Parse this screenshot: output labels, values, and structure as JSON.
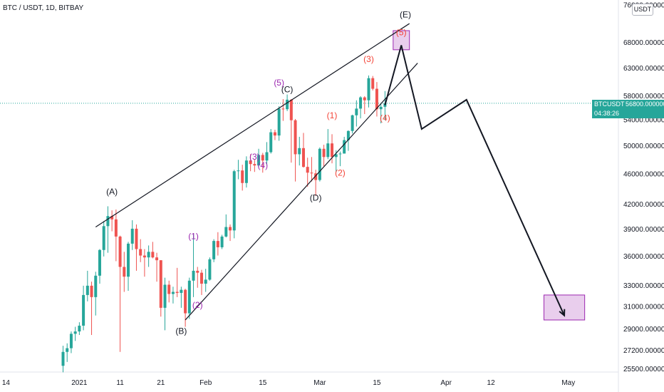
{
  "header": {
    "symbol_line": "BTC / USDT, 1D, BITBAY"
  },
  "currency_badge": "USDT",
  "price_label": {
    "symbol": "BTCUSDT",
    "price": "56800.000000",
    "countdown": "04:38:26"
  },
  "chart_data": {
    "type": "candlestick",
    "title": "BTC / USDT, 1D, BITBAY",
    "x_ticks": [
      "14",
      "2021",
      "11",
      "21",
      "Feb",
      "15",
      "Mar",
      "15",
      "Apr",
      "12",
      "May"
    ],
    "y_ticks": [
      "76000.000000",
      "68000.000000",
      "63000.000000",
      "58000.000000",
      "54000.000000",
      "50000.000000",
      "46000.000000",
      "42000.000000",
      "39000.000000",
      "36000.000000",
      "33000.000000",
      "31000.000000",
      "29000.000000",
      "27200.000000",
      "25500.000000"
    ],
    "y_log_scale": true,
    "current_price": 56800,
    "up_color": "#26a69a",
    "down_color": "#ef5350",
    "candles": [
      {
        "date": "2020-12-28",
        "open": 26000,
        "high": 27600,
        "low": 25500,
        "close": 27100
      },
      {
        "date": "2020-12-29",
        "open": 27100,
        "high": 27800,
        "low": 26300,
        "close": 27400
      },
      {
        "date": "2020-12-30",
        "open": 27400,
        "high": 28800,
        "low": 27000,
        "close": 28600
      },
      {
        "date": "2020-12-31",
        "open": 28600,
        "high": 29200,
        "low": 28000,
        "close": 28800
      },
      {
        "date": "2021-01-01",
        "open": 28800,
        "high": 29600,
        "low": 28500,
        "close": 29300
      },
      {
        "date": "2021-01-02",
        "open": 29300,
        "high": 33000,
        "low": 28900,
        "close": 32100
      },
      {
        "date": "2021-01-03",
        "open": 32100,
        "high": 34500,
        "low": 31500,
        "close": 33000
      },
      {
        "date": "2021-01-04",
        "open": 33000,
        "high": 33400,
        "low": 28500,
        "close": 31900
      },
      {
        "date": "2021-01-05",
        "open": 31900,
        "high": 34400,
        "low": 30200,
        "close": 34000
      },
      {
        "date": "2021-01-06",
        "open": 34000,
        "high": 36800,
        "low": 33200,
        "close": 36700
      },
      {
        "date": "2021-01-07",
        "open": 36700,
        "high": 40000,
        "low": 36000,
        "close": 39400
      },
      {
        "date": "2021-01-08",
        "open": 39400,
        "high": 41800,
        "low": 36400,
        "close": 40600
      },
      {
        "date": "2021-01-09",
        "open": 40600,
        "high": 41300,
        "low": 38800,
        "close": 40200
      },
      {
        "date": "2021-01-10",
        "open": 40200,
        "high": 41400,
        "low": 35500,
        "close": 38200
      },
      {
        "date": "2021-01-11",
        "open": 38200,
        "high": 38300,
        "low": 27100,
        "close": 34900
      },
      {
        "date": "2021-01-12",
        "open": 34900,
        "high": 36500,
        "low": 32400,
        "close": 33900
      },
      {
        "date": "2021-01-13",
        "open": 33900,
        "high": 37600,
        "low": 32500,
        "close": 37400
      },
      {
        "date": "2021-01-14",
        "open": 37400,
        "high": 40100,
        "low": 36700,
        "close": 39100
      },
      {
        "date": "2021-01-15",
        "open": 39100,
        "high": 39600,
        "low": 34500,
        "close": 36800
      },
      {
        "date": "2021-01-16",
        "open": 36800,
        "high": 37900,
        "low": 35400,
        "close": 36100
      },
      {
        "date": "2021-01-17",
        "open": 36100,
        "high": 36800,
        "low": 33900,
        "close": 35900
      },
      {
        "date": "2021-01-18",
        "open": 35900,
        "high": 37200,
        "low": 34900,
        "close": 36500
      },
      {
        "date": "2021-01-19",
        "open": 36500,
        "high": 37600,
        "low": 35800,
        "close": 35900
      },
      {
        "date": "2021-01-20",
        "open": 35900,
        "high": 36400,
        "low": 33400,
        "close": 35600
      },
      {
        "date": "2021-01-21",
        "open": 35600,
        "high": 35600,
        "low": 30100,
        "close": 30900
      },
      {
        "date": "2021-01-22",
        "open": 30900,
        "high": 33800,
        "low": 28900,
        "close": 33100
      },
      {
        "date": "2021-01-23",
        "open": 33100,
        "high": 33500,
        "low": 31400,
        "close": 32200
      },
      {
        "date": "2021-01-24",
        "open": 32200,
        "high": 32900,
        "low": 31300,
        "close": 32400
      },
      {
        "date": "2021-01-25",
        "open": 32400,
        "high": 34800,
        "low": 31900,
        "close": 32300
      },
      {
        "date": "2021-01-26",
        "open": 32300,
        "high": 32900,
        "low": 30900,
        "close": 32600
      },
      {
        "date": "2021-01-27",
        "open": 32600,
        "high": 32700,
        "low": 29200,
        "close": 30400
      },
      {
        "date": "2021-01-28",
        "open": 30400,
        "high": 33800,
        "low": 29900,
        "close": 33500
      },
      {
        "date": "2021-01-29",
        "open": 33500,
        "high": 38500,
        "low": 31900,
        "close": 34500
      },
      {
        "date": "2021-01-30",
        "open": 34500,
        "high": 34900,
        "low": 32800,
        "close": 34300
      },
      {
        "date": "2021-01-31",
        "open": 34300,
        "high": 34600,
        "low": 32100,
        "close": 33200
      },
      {
        "date": "2021-02-01",
        "open": 33200,
        "high": 34700,
        "low": 32400,
        "close": 33600
      },
      {
        "date": "2021-02-02",
        "open": 33600,
        "high": 35900,
        "low": 33500,
        "close": 35700
      },
      {
        "date": "2021-02-03",
        "open": 35700,
        "high": 37900,
        "low": 35400,
        "close": 37700
      },
      {
        "date": "2021-02-04",
        "open": 37700,
        "high": 38700,
        "low": 36100,
        "close": 37000
      },
      {
        "date": "2021-02-05",
        "open": 37000,
        "high": 38400,
        "low": 36800,
        "close": 38200
      },
      {
        "date": "2021-02-06",
        "open": 38200,
        "high": 40800,
        "low": 38100,
        "close": 39300
      },
      {
        "date": "2021-02-07",
        "open": 39300,
        "high": 39600,
        "low": 37700,
        "close": 38900
      },
      {
        "date": "2021-02-08",
        "open": 38900,
        "high": 46600,
        "low": 38000,
        "close": 46400
      },
      {
        "date": "2021-02-09",
        "open": 46400,
        "high": 48000,
        "low": 45300,
        "close": 46500
      },
      {
        "date": "2021-02-10",
        "open": 46500,
        "high": 47300,
        "low": 43800,
        "close": 44800
      },
      {
        "date": "2021-02-11",
        "open": 44800,
        "high": 48500,
        "low": 44200,
        "close": 47900
      },
      {
        "date": "2021-02-12",
        "open": 47900,
        "high": 48800,
        "low": 46400,
        "close": 47400
      },
      {
        "date": "2021-02-13",
        "open": 47400,
        "high": 48000,
        "low": 46300,
        "close": 47200
      },
      {
        "date": "2021-02-14",
        "open": 47200,
        "high": 49600,
        "low": 47000,
        "close": 48700
      },
      {
        "date": "2021-02-15",
        "open": 48700,
        "high": 49000,
        "low": 46200,
        "close": 47900
      },
      {
        "date": "2021-02-16",
        "open": 47900,
        "high": 50600,
        "low": 47200,
        "close": 49100
      },
      {
        "date": "2021-02-17",
        "open": 49100,
        "high": 52600,
        "low": 48900,
        "close": 52100
      },
      {
        "date": "2021-02-18",
        "open": 52100,
        "high": 52500,
        "low": 50900,
        "close": 51600
      },
      {
        "date": "2021-02-19",
        "open": 51600,
        "high": 56300,
        "low": 50800,
        "close": 55900
      },
      {
        "date": "2021-02-20",
        "open": 55900,
        "high": 57500,
        "low": 53900,
        "close": 55800
      },
      {
        "date": "2021-02-21",
        "open": 55800,
        "high": 58300,
        "low": 55500,
        "close": 57400
      },
      {
        "date": "2021-02-22",
        "open": 57400,
        "high": 57500,
        "low": 47600,
        "close": 54000
      },
      {
        "date": "2021-02-23",
        "open": 54000,
        "high": 54200,
        "low": 45000,
        "close": 48800
      },
      {
        "date": "2021-02-24",
        "open": 48800,
        "high": 51400,
        "low": 47200,
        "close": 49700
      },
      {
        "date": "2021-02-25",
        "open": 49700,
        "high": 52000,
        "low": 46900,
        "close": 47000
      },
      {
        "date": "2021-02-26",
        "open": 47000,
        "high": 48300,
        "low": 44300,
        "close": 46200
      },
      {
        "date": "2021-02-27",
        "open": 46200,
        "high": 48400,
        "low": 45000,
        "close": 46100
      },
      {
        "date": "2021-02-28",
        "open": 46100,
        "high": 46600,
        "low": 43100,
        "close": 45200
      },
      {
        "date": "2021-03-01",
        "open": 45200,
        "high": 49800,
        "low": 45000,
        "close": 49600
      },
      {
        "date": "2021-03-02",
        "open": 49600,
        "high": 50200,
        "low": 47100,
        "close": 48400
      },
      {
        "date": "2021-03-03",
        "open": 48400,
        "high": 52600,
        "low": 48100,
        "close": 50400
      },
      {
        "date": "2021-03-04",
        "open": 50400,
        "high": 51800,
        "low": 47500,
        "close": 48400
      },
      {
        "date": "2021-03-05",
        "open": 48400,
        "high": 49400,
        "low": 46300,
        "close": 48800
      },
      {
        "date": "2021-03-06",
        "open": 48800,
        "high": 49200,
        "low": 47100,
        "close": 48900
      },
      {
        "date": "2021-03-07",
        "open": 48900,
        "high": 51400,
        "low": 48900,
        "close": 50900
      },
      {
        "date": "2021-03-08",
        "open": 50900,
        "high": 52400,
        "low": 49300,
        "close": 52300
      },
      {
        "date": "2021-03-09",
        "open": 52300,
        "high": 54900,
        "low": 51900,
        "close": 54800
      },
      {
        "date": "2021-03-10",
        "open": 54800,
        "high": 57300,
        "low": 53000,
        "close": 55900
      },
      {
        "date": "2021-03-11",
        "open": 55900,
        "high": 58000,
        "low": 54300,
        "close": 57800
      },
      {
        "date": "2021-03-12",
        "open": 57800,
        "high": 58000,
        "low": 55000,
        "close": 57300
      },
      {
        "date": "2021-03-13",
        "open": 57300,
        "high": 61700,
        "low": 56100,
        "close": 61200
      },
      {
        "date": "2021-03-14",
        "open": 61200,
        "high": 61600,
        "low": 59000,
        "close": 59300
      },
      {
        "date": "2021-03-15",
        "open": 59300,
        "high": 60500,
        "low": 54600,
        "close": 55800
      },
      {
        "date": "2021-03-16",
        "open": 55800,
        "high": 56800,
        "low": 53500,
        "close": 56200
      },
      {
        "date": "2021-03-17",
        "open": 56200,
        "high": 58900,
        "low": 54000,
        "close": 56800
      }
    ],
    "trendlines": [
      {
        "name": "upper",
        "from": {
          "date": "2021-01-05",
          "price": 39300
        },
        "to": {
          "date": "2021-03-23",
          "price": 72000
        }
      },
      {
        "name": "lower",
        "from": {
          "date": "2021-01-27",
          "price": 29800
        },
        "to": {
          "date": "2021-03-25",
          "price": 64000
        }
      }
    ],
    "projection_path": [
      {
        "date": "2021-03-17",
        "price": 56500
      },
      {
        "date": "2021-03-21",
        "price": 67500
      },
      {
        "date": "2021-03-26",
        "price": 52600
      },
      {
        "date": "2021-04-06",
        "price": 57400
      },
      {
        "date": "2021-04-30",
        "price": 30200
      }
    ],
    "target_zones": [
      {
        "from_date": "2021-03-19",
        "to_date": "2021-03-23",
        "low": 66600,
        "high": 70500,
        "color": "#e1bee7"
      },
      {
        "from_date": "2021-04-25",
        "to_date": "2021-05-05",
        "low": 29800,
        "high": 32100,
        "color": "#e1bee7"
      }
    ],
    "wave_labels": [
      {
        "text": "(A)",
        "date": "2021-01-09",
        "price": 43300,
        "color": "#131722"
      },
      {
        "text": "(B)",
        "date": "2021-01-26",
        "price": 28600,
        "color": "#131722"
      },
      {
        "text": "(C)",
        "date": "2021-02-21",
        "price": 58700,
        "color": "#131722"
      },
      {
        "text": "(D)",
        "date": "2021-02-28",
        "price": 42500,
        "color": "#131722"
      },
      {
        "text": "(E)",
        "date": "2021-03-22",
        "price": 73300,
        "color": "#131722"
      },
      {
        "text": "(1)",
        "date": "2021-01-29",
        "price": 37900,
        "color": "#9c27b0"
      },
      {
        "text": "(2)",
        "date": "2021-01-30",
        "price": 30900,
        "color": "#9c27b0"
      },
      {
        "text": "(3)",
        "date": "2021-02-13",
        "price": 48000,
        "color": "#9c27b0"
      },
      {
        "text": "(4)",
        "date": "2021-02-15",
        "price": 46800,
        "color": "#9c27b0"
      },
      {
        "text": "(5)",
        "date": "2021-02-19",
        "price": 59900,
        "color": "#9c27b0"
      },
      {
        "text": "(1)",
        "date": "2021-03-04",
        "price": 54300,
        "color": "#f44336"
      },
      {
        "text": "(2)",
        "date": "2021-03-06",
        "price": 45800,
        "color": "#f44336"
      },
      {
        "text": "(3)",
        "date": "2021-03-13",
        "price": 64200,
        "color": "#f44336"
      },
      {
        "text": "(4)",
        "date": "2021-03-17",
        "price": 53900,
        "color": "#f44336"
      },
      {
        "text": "(5)",
        "date": "2021-03-21",
        "price": 69500,
        "color": "#f44336"
      }
    ]
  }
}
